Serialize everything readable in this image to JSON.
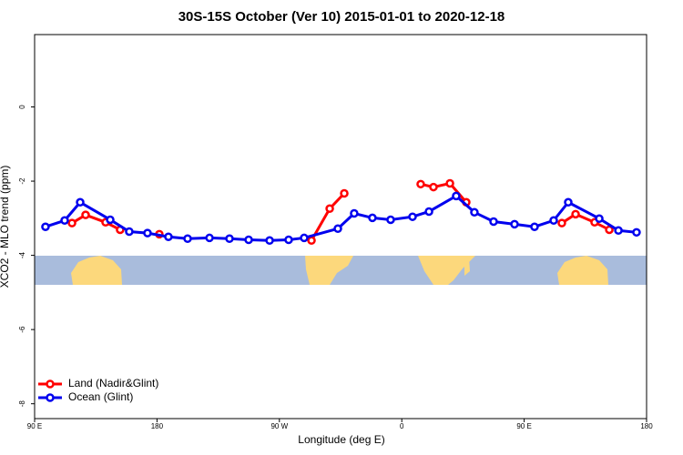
{
  "chart_data": {
    "type": "line",
    "title": "30S-15S October (Ver 10)   2015-01-01 to 2020-12-18",
    "xlabel": "Longitude (deg E)",
    "ylabel": "XCO2 - MLO trend (ppm)",
    "xlim": [
      90,
      540
    ],
    "ylim": [
      -8.4,
      1.95
    ],
    "xticks": [
      {
        "value": 90,
        "label": "90 E"
      },
      180,
      {
        "value": 270,
        "label": "90 W"
      },
      {
        "value": 360,
        "label": "0"
      },
      {
        "value": 450,
        "label": "90 E"
      },
      {
        "value": 540,
        "label": "180"
      }
    ],
    "yticks": [
      0,
      -2,
      -4,
      -6,
      -8
    ],
    "legend": "bottom-left",
    "series": [
      {
        "name": "Land (Nadir&Glint)",
        "color": "#ff0000",
        "x": [
          117.5,
          127.5,
          142.2,
          152.9,
          null,
          181.7,
          null,
          293.6,
          307.0,
          317.7,
          null,
          373.9,
          383.3,
          395.4,
          407.4,
          null,
          477.7,
          487.8,
          501.8,
          512.6
        ],
        "values": [
          -3.13,
          -2.91,
          -3.11,
          -3.31,
          null,
          -3.43,
          null,
          -3.6,
          -2.74,
          -2.33,
          null,
          -2.08,
          -2.16,
          -2.06,
          -2.57,
          null,
          -3.13,
          -2.89,
          -3.11,
          -3.31
        ]
      },
      {
        "name": "Ocean (Glint)",
        "color": "#0000ee",
        "x": [
          98.0,
          112.1,
          123.5,
          145.6,
          159.6,
          173.0,
          188.4,
          202.5,
          218.6,
          233.3,
          247.4,
          262.8,
          276.8,
          288.2,
          313.0,
          325.0,
          338.4,
          351.8,
          367.9,
          380.0,
          400.0,
          413.4,
          427.5,
          442.9,
          457.6,
          471.7,
          482.4,
          505.2,
          519.3,
          532.6
        ],
        "values": [
          -3.23,
          -3.06,
          -2.57,
          -3.04,
          -3.36,
          -3.4,
          -3.5,
          -3.55,
          -3.53,
          -3.55,
          -3.58,
          -3.6,
          -3.58,
          -3.53,
          -3.28,
          -2.87,
          -2.99,
          -3.04,
          -2.96,
          -2.82,
          -2.4,
          -2.84,
          -3.09,
          -3.16,
          -3.23,
          -3.06,
          -2.57,
          -3.01,
          -3.33,
          -3.38
        ]
      }
    ]
  }
}
